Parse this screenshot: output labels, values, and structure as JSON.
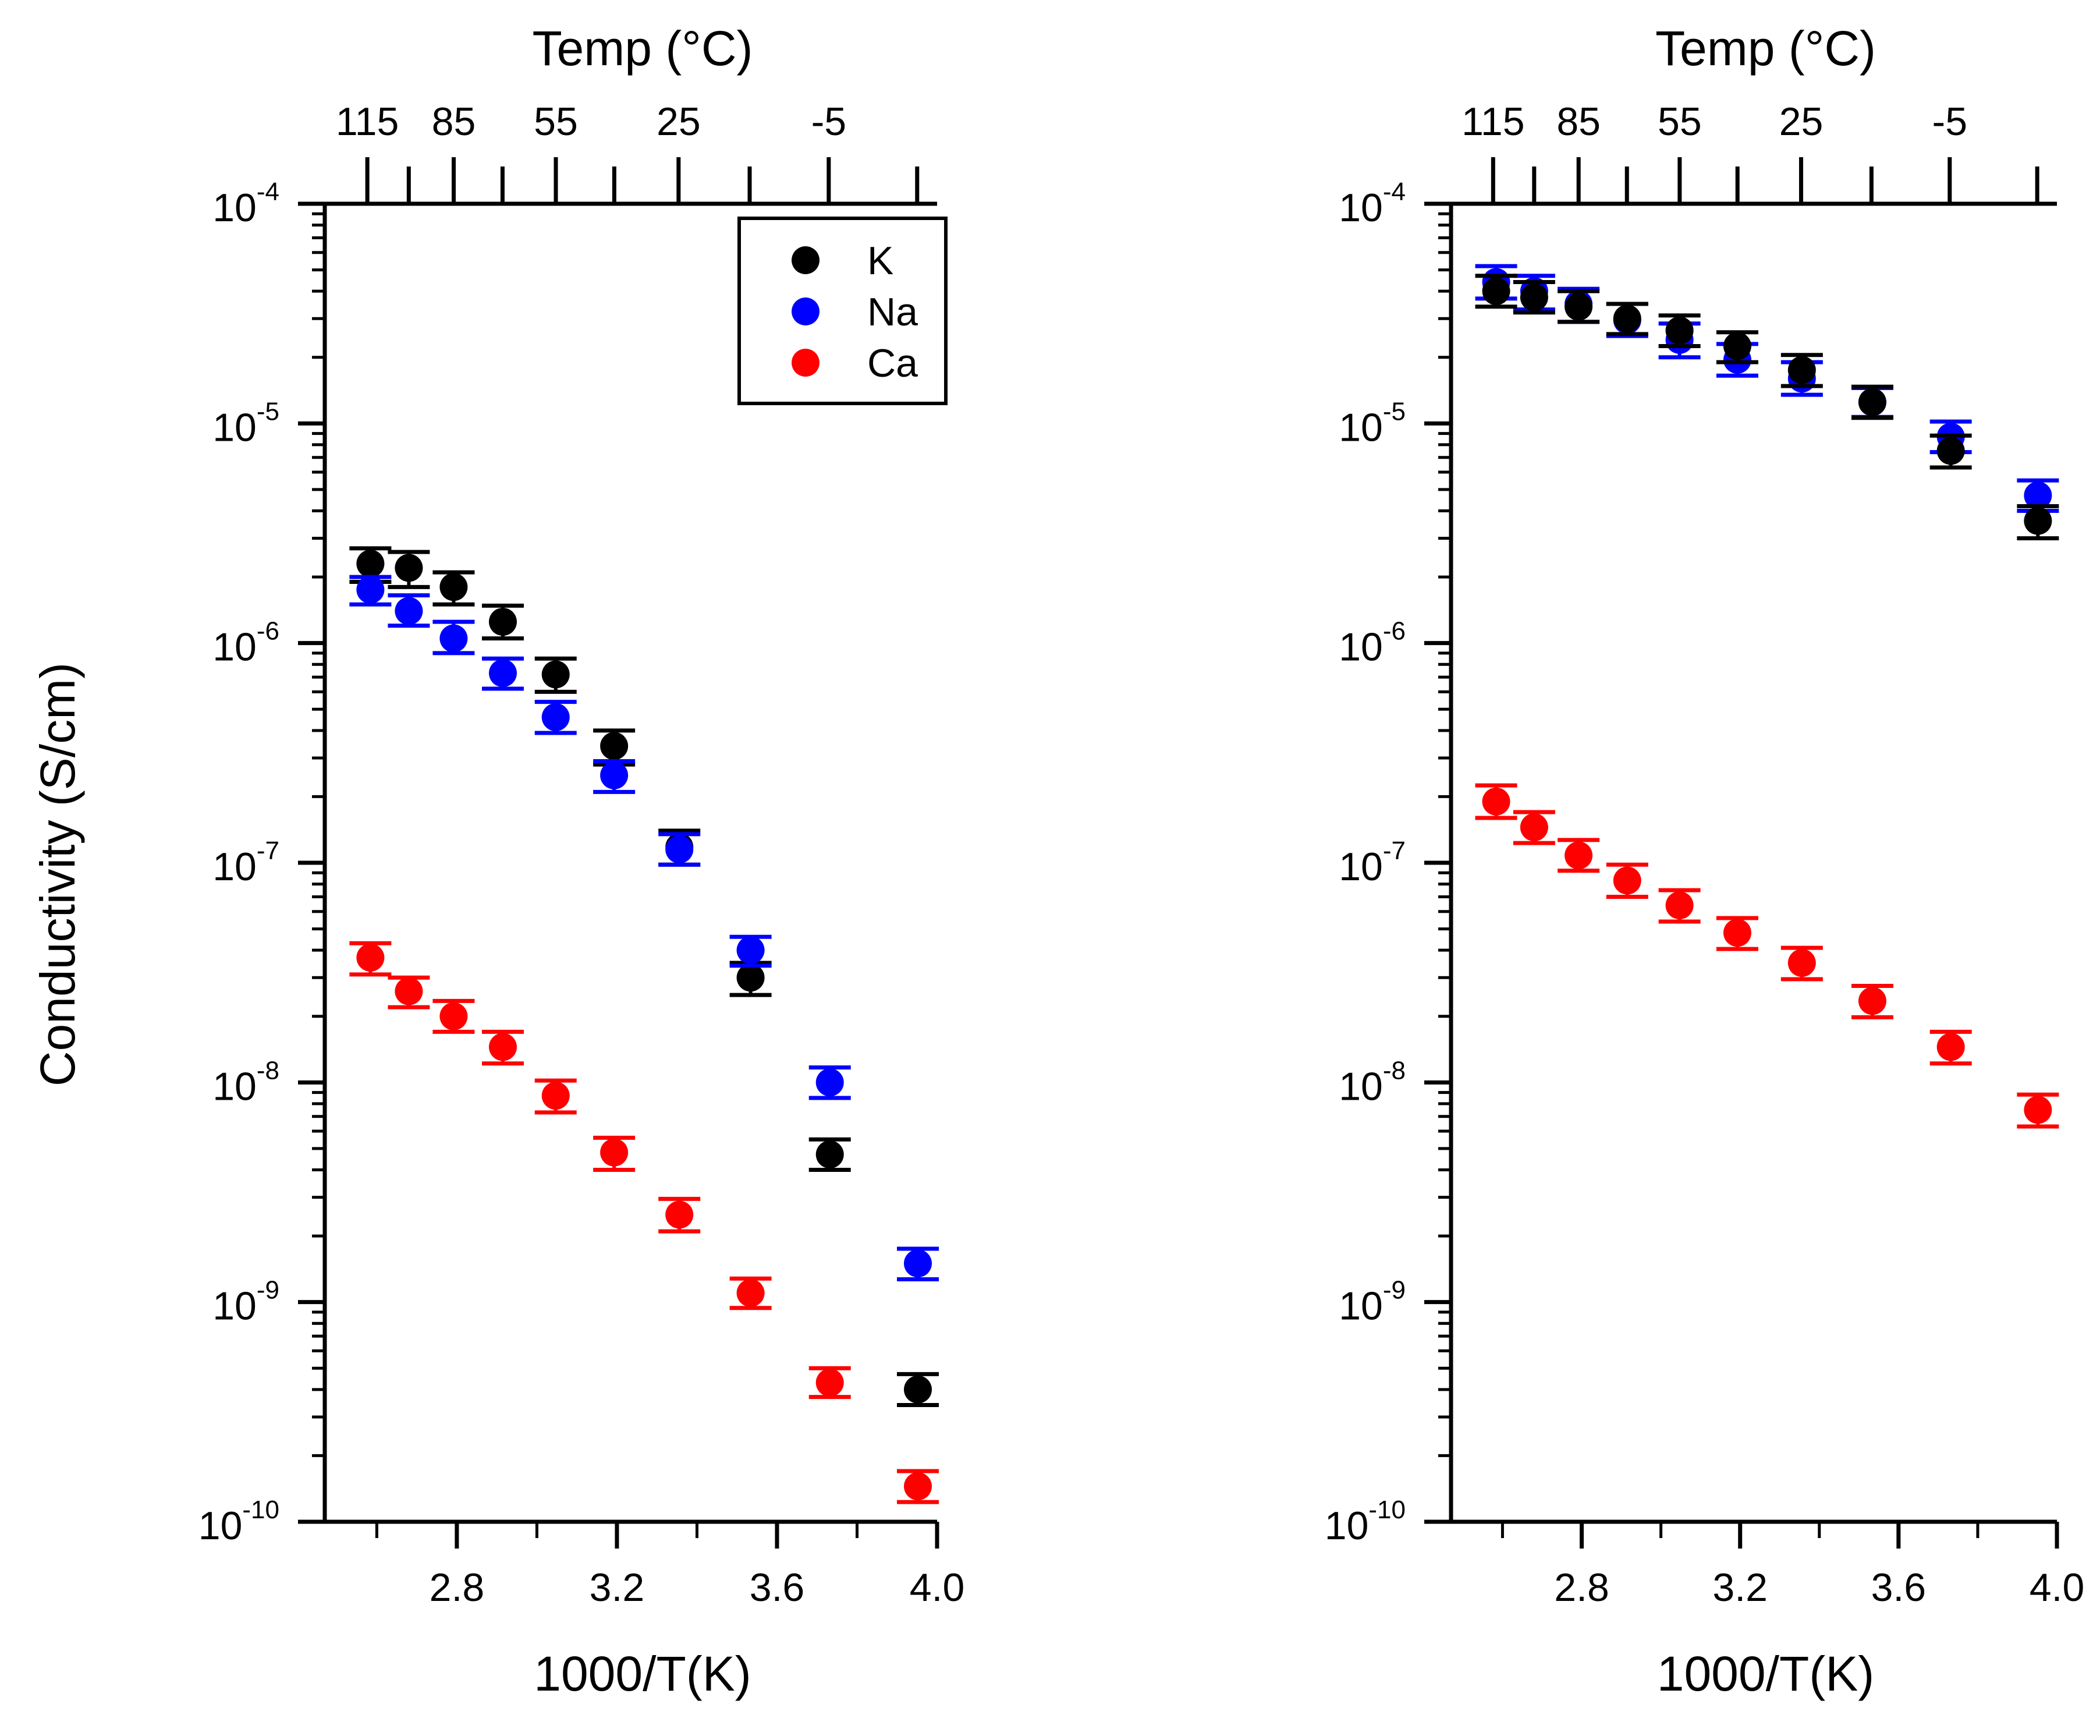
{
  "chart_data": [
    {
      "type": "scatter",
      "panel": "left",
      "title": "",
      "xlabel": "1000/T(K)",
      "ylabel": "Conductivity (S/cm)",
      "top_axis_label": "Temp (°C)",
      "xlim": [
        2.47,
        4.0
      ],
      "ylim_log10": [
        -10,
        -4
      ],
      "yscale": "log",
      "x_ticks": [
        2.8,
        3.2,
        3.6,
        4.0
      ],
      "x_tick_labels": [
        "2.8",
        "3.2",
        "3.6",
        "4.0"
      ],
      "y_ticks_exp": [
        -4,
        -5,
        -6,
        -7,
        -8,
        -9,
        -10
      ],
      "y_tick_base": "10",
      "y_tick_exponents": [
        "-4",
        "-5",
        "-6",
        "-7",
        "-8",
        "-9",
        "-10"
      ],
      "top_ticks_celsius": [
        115,
        100,
        85,
        70,
        55,
        40,
        25,
        10,
        -5,
        -20
      ],
      "top_tick_labels": [
        "115",
        "85",
        "55",
        "25",
        "-5"
      ],
      "top_tick_labeled_celsius": [
        115,
        85,
        55,
        25,
        -5
      ],
      "legend": {
        "position": "top-right",
        "entries": [
          "K",
          "Na",
          "Ca"
        ]
      },
      "series": [
        {
          "name": "K",
          "color": "#000000",
          "x": [
            2.584,
            2.68,
            2.792,
            2.915,
            3.047,
            3.193,
            3.356,
            3.534,
            3.732,
            3.952
          ],
          "y": [
            2.3e-06,
            2.2e-06,
            1.8e-06,
            1.25e-06,
            7.2e-07,
            3.4e-07,
            1.18e-07,
            3e-08,
            4.7e-09,
            4e-10
          ],
          "err_lo": [
            1.9e-06,
            1.8e-06,
            1.5e-06,
            1.05e-06,
            6e-07,
            2.8e-07,
            9.8e-08,
            2.5e-08,
            4e-09,
            3.4e-10
          ],
          "err_hi": [
            2.7e-06,
            2.6e-06,
            2.1e-06,
            1.48e-06,
            8.5e-07,
            4e-07,
            1.4e-07,
            3.5e-08,
            5.5e-09,
            4.7e-10
          ]
        },
        {
          "name": "Na",
          "color": "#0000ff",
          "x": [
            2.584,
            2.68,
            2.792,
            2.915,
            3.047,
            3.193,
            3.356,
            3.534,
            3.732,
            3.952
          ],
          "y": [
            1.75e-06,
            1.4e-06,
            1.05e-06,
            7.3e-07,
            4.6e-07,
            2.5e-07,
            1.15e-07,
            4e-08,
            1e-08,
            1.5e-09
          ],
          "err_lo": [
            1.5e-06,
            1.2e-06,
            9e-07,
            6.2e-07,
            3.9e-07,
            2.1e-07,
            9.8e-08,
            3.4e-08,
            8.5e-09,
            1.27e-09
          ],
          "err_hi": [
            2e-06,
            1.65e-06,
            1.25e-06,
            8.5e-07,
            5.4e-07,
            2.9e-07,
            1.35e-07,
            4.6e-08,
            1.17e-08,
            1.75e-09
          ]
        },
        {
          "name": "Ca",
          "color": "#ff0000",
          "x": [
            2.584,
            2.68,
            2.792,
            2.915,
            3.047,
            3.193,
            3.356,
            3.534,
            3.732,
            3.952
          ],
          "y": [
            3.7e-08,
            2.6e-08,
            2e-08,
            1.45e-08,
            8.7e-09,
            4.8e-09,
            2.5e-09,
            1.1e-09,
            4.3e-10,
            1.45e-10
          ],
          "err_lo": [
            3.1e-08,
            2.2e-08,
            1.7e-08,
            1.22e-08,
            7.3e-09,
            4e-09,
            2.1e-09,
            9.4e-10,
            3.7e-10,
            1.23e-10
          ],
          "err_hi": [
            4.3e-08,
            3e-08,
            2.35e-08,
            1.7e-08,
            1.02e-08,
            5.6e-09,
            2.95e-09,
            1.28e-09,
            5e-10,
            1.7e-10
          ]
        }
      ]
    },
    {
      "type": "scatter",
      "panel": "right",
      "title": "",
      "xlabel": "1000/T(K)",
      "ylabel": "",
      "top_axis_label": "Temp (°C)",
      "xlim": [
        2.47,
        4.0
      ],
      "ylim_log10": [
        -10,
        -4
      ],
      "yscale": "log",
      "x_ticks": [
        2.8,
        3.2,
        3.6,
        4.0
      ],
      "x_tick_labels": [
        "2.8",
        "3.2",
        "3.6",
        "4.0"
      ],
      "y_ticks_exp": [
        -4,
        -5,
        -6,
        -7,
        -8,
        -9,
        -10
      ],
      "y_tick_base": "10",
      "y_tick_exponents": [
        "-4",
        "-5",
        "-6",
        "-7",
        "-8",
        "-9",
        "-10"
      ],
      "top_ticks_celsius": [
        115,
        100,
        85,
        70,
        55,
        40,
        25,
        10,
        -5,
        -20
      ],
      "top_tick_labels": [
        "115",
        "85",
        "55",
        "25",
        "-5"
      ],
      "top_tick_labeled_celsius": [
        115,
        85,
        55,
        25,
        -5
      ],
      "series": [
        {
          "name": "Na",
          "color": "#0000ff",
          "x": [
            2.584,
            2.68,
            2.792,
            2.915,
            3.047,
            3.193,
            3.356,
            3.534,
            3.732,
            3.952
          ],
          "y": [
            4.4e-05,
            4e-05,
            3.5e-05,
            2.95e-05,
            2.4e-05,
            1.95e-05,
            1.6e-05,
            1.25e-05,
            8.7e-06,
            4.7e-06
          ],
          "err_lo": [
            3.7e-05,
            3.3e-05,
            2.9e-05,
            2.5e-05,
            2e-05,
            1.65e-05,
            1.35e-05,
            1.07e-05,
            7.4e-06,
            4e-06
          ],
          "err_hi": [
            5.2e-05,
            4.7e-05,
            4.1e-05,
            3.5e-05,
            2.85e-05,
            2.3e-05,
            1.9e-05,
            1.45e-05,
            1.02e-05,
            5.5e-06
          ]
        },
        {
          "name": "K",
          "color": "#000000",
          "x": [
            2.584,
            2.68,
            2.792,
            2.915,
            3.047,
            3.193,
            3.356,
            3.534,
            3.732,
            3.952
          ],
          "y": [
            4e-05,
            3.75e-05,
            3.4e-05,
            3e-05,
            2.65e-05,
            2.25e-05,
            1.75e-05,
            1.25e-05,
            7.5e-06,
            3.6e-06
          ],
          "err_lo": [
            3.4e-05,
            3.2e-05,
            2.9e-05,
            2.55e-05,
            2.25e-05,
            1.9e-05,
            1.48e-05,
            1.06e-05,
            6.3e-06,
            3e-06
          ],
          "err_hi": [
            4.7e-05,
            4.4e-05,
            4e-05,
            3.5e-05,
            3.1e-05,
            2.6e-05,
            2.05e-05,
            1.47e-05,
            8.8e-06,
            4.2e-06
          ]
        },
        {
          "name": "Ca",
          "color": "#ff0000",
          "x": [
            2.584,
            2.68,
            2.792,
            2.915,
            3.047,
            3.193,
            3.356,
            3.534,
            3.732,
            3.952
          ],
          "y": [
            1.9e-07,
            1.45e-07,
            1.08e-07,
            8.3e-08,
            6.4e-08,
            4.8e-08,
            3.5e-08,
            2.35e-08,
            1.45e-08,
            7.5e-09
          ],
          "err_lo": [
            1.6e-07,
            1.23e-07,
            9.2e-08,
            7e-08,
            5.4e-08,
            4.05e-08,
            2.95e-08,
            1.98e-08,
            1.22e-08,
            6.3e-09
          ],
          "err_hi": [
            2.25e-07,
            1.7e-07,
            1.27e-07,
            9.8e-08,
            7.5e-08,
            5.6e-08,
            4.1e-08,
            2.75e-08,
            1.7e-08,
            8.8e-09
          ]
        }
      ]
    }
  ]
}
